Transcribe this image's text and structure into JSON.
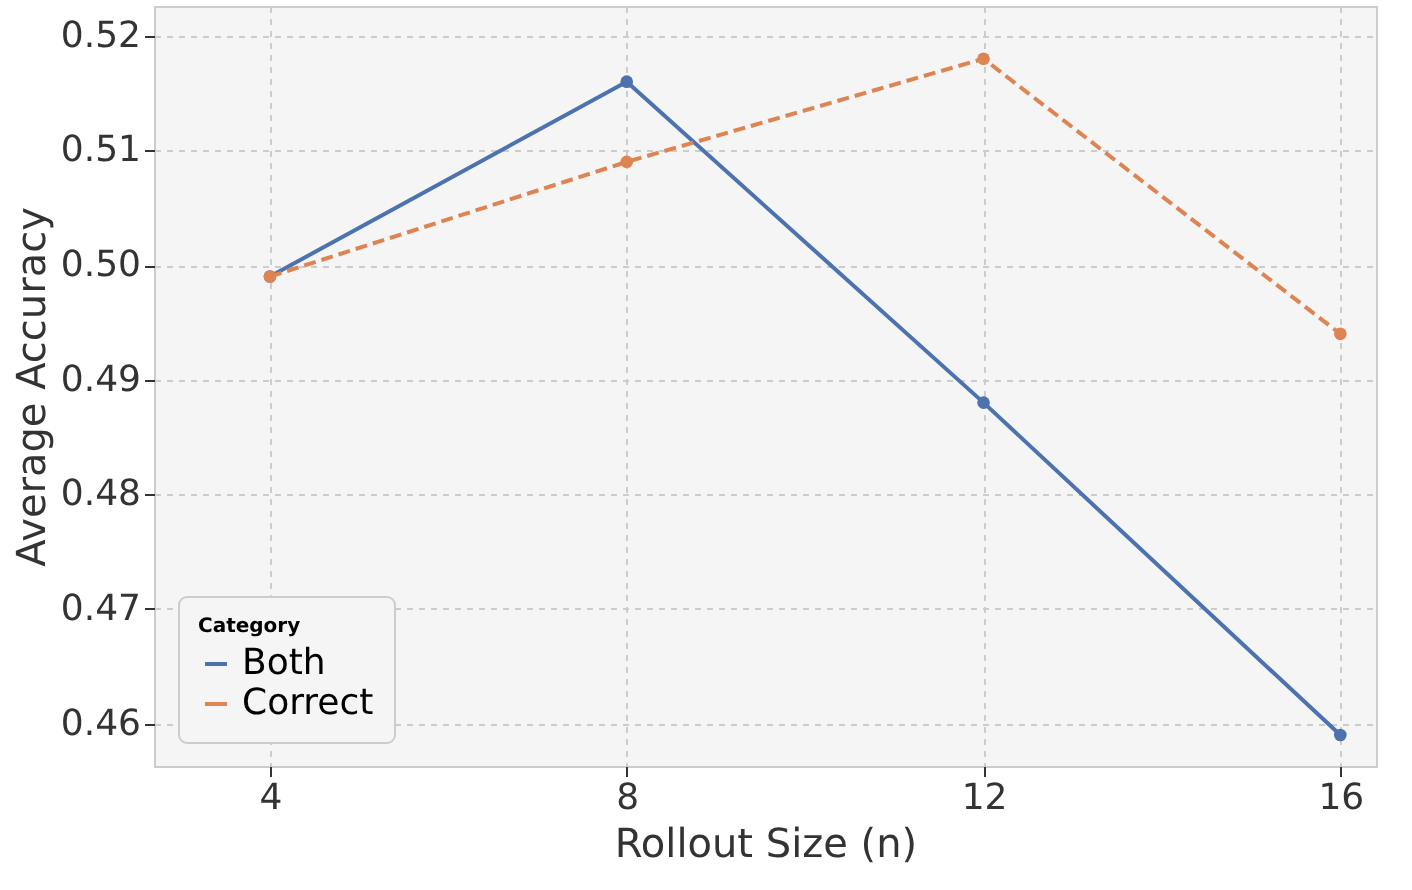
{
  "chart_data": {
    "type": "line",
    "xlabel": "Rollout Size (n)",
    "ylabel": "Average Accuracy",
    "legend_title": "Category",
    "x": [
      4,
      8,
      12,
      16
    ],
    "series": [
      {
        "name": "Both",
        "color": "#4c72b0",
        "values": [
          0.499,
          0.516,
          0.488,
          0.459
        ],
        "line_style": "solid"
      },
      {
        "name": "Correct",
        "color": "#dd8452",
        "values": [
          0.499,
          0.509,
          0.518,
          0.494
        ],
        "line_style": "dashed"
      }
    ],
    "xlim": [
      2.7,
      16.4
    ],
    "xticks": [
      4,
      8,
      12,
      16
    ],
    "ylim": [
      0.4563,
      0.5226
    ],
    "yticks": [
      0.46,
      0.47,
      0.48,
      0.49,
      {
        "value": 0.5,
        "label": "0.50"
      },
      0.51,
      0.52
    ],
    "grid": true,
    "legend": "bottom left",
    "marker": "circle"
  }
}
